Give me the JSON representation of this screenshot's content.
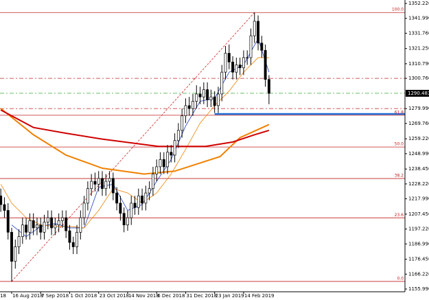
{
  "chart_data": {
    "type": "candlestick",
    "x": [
      -6,
      -4,
      -2,
      0,
      2,
      4,
      6,
      8,
      10,
      12,
      14,
      16,
      18,
      20,
      22,
      24,
      26,
      28,
      30,
      32,
      34,
      36,
      38,
      40,
      42,
      44,
      46,
      48,
      50,
      52,
      54,
      56,
      58,
      60,
      62,
      64,
      66,
      68,
      70,
      72,
      74,
      76,
      78,
      80,
      82,
      84,
      86,
      88,
      90,
      92,
      94,
      96,
      98,
      100,
      102,
      104,
      106,
      108,
      110,
      112,
      114,
      116,
      118,
      120,
      122,
      124,
      126,
      128,
      130,
      132,
      134,
      136,
      138,
      140,
      142
    ],
    "open": [
      1220,
      1214,
      1210,
      1195,
      1175,
      1185,
      1192,
      1200,
      1195,
      1203,
      1198,
      1200,
      1195,
      1202,
      1205,
      1198,
      1200,
      1203,
      1205,
      1196,
      1188,
      1185,
      1195,
      1205,
      1215,
      1225,
      1230,
      1228,
      1232,
      1225,
      1230,
      1232,
      1222,
      1215,
      1208,
      1200,
      1205,
      1215,
      1212,
      1220,
      1215,
      1222,
      1225,
      1235,
      1240,
      1245,
      1240,
      1250,
      1248,
      1258,
      1265,
      1275,
      1282,
      1280,
      1285,
      1290,
      1288,
      1293,
      1286,
      1288,
      1282,
      1290,
      1305,
      1318,
      1312,
      1305,
      1310,
      1308,
      1315,
      1315,
      1330,
      1340,
      1325,
      1320,
      1300
    ],
    "high": [
      1225,
      1219,
      1215,
      1198,
      1190,
      1197,
      1205,
      1205,
      1208,
      1208,
      1205,
      1205,
      1207,
      1210,
      1210,
      1205,
      1208,
      1210,
      1210,
      1200,
      1192,
      1200,
      1210,
      1220,
      1230,
      1235,
      1236,
      1237,
      1237,
      1235,
      1237,
      1236,
      1226,
      1220,
      1212,
      1210,
      1220,
      1220,
      1225,
      1225,
      1227,
      1230,
      1240,
      1245,
      1250,
      1250,
      1255,
      1255,
      1263,
      1270,
      1280,
      1287,
      1288,
      1290,
      1296,
      1295,
      1298,
      1298,
      1293,
      1292,
      1295,
      1310,
      1323,
      1324,
      1316,
      1315,
      1315,
      1320,
      1320,
      1335,
      1346,
      1344,
      1330,
      1324,
      1303
    ],
    "low": [
      1209,
      1205,
      1190,
      1161,
      1170,
      1180,
      1187,
      1190,
      1190,
      1193,
      1193,
      1190,
      1190,
      1197,
      1193,
      1193,
      1195,
      1198,
      1191,
      1183,
      1180,
      1180,
      1190,
      1200,
      1210,
      1220,
      1223,
      1223,
      1220,
      1220,
      1225,
      1217,
      1210,
      1203,
      1195,
      1196,
      1200,
      1207,
      1207,
      1210,
      1210,
      1217,
      1220,
      1230,
      1235,
      1235,
      1235,
      1243,
      1243,
      1253,
      1260,
      1270,
      1275,
      1275,
      1280,
      1283,
      1283,
      1281,
      1281,
      1277,
      1277,
      1285,
      1300,
      1307,
      1300,
      1300,
      1303,
      1303,
      1310,
      1310,
      1325,
      1320,
      1315,
      1295,
      1283
    ],
    "close": [
      1214,
      1210,
      1195,
      1175,
      1185,
      1192,
      1200,
      1195,
      1203,
      1198,
      1200,
      1195,
      1202,
      1205,
      1198,
      1200,
      1203,
      1205,
      1196,
      1188,
      1185,
      1195,
      1205,
      1215,
      1225,
      1230,
      1228,
      1232,
      1225,
      1230,
      1232,
      1222,
      1215,
      1208,
      1200,
      1205,
      1215,
      1212,
      1220,
      1215,
      1222,
      1225,
      1235,
      1240,
      1245,
      1240,
      1250,
      1248,
      1258,
      1265,
      1275,
      1282,
      1280,
      1285,
      1290,
      1288,
      1293,
      1286,
      1288,
      1282,
      1290,
      1305,
      1318,
      1312,
      1305,
      1310,
      1308,
      1315,
      1315,
      1330,
      1340,
      1325,
      1320,
      1300,
      1290.483
    ],
    "color": "#000000",
    "lines": [
      {
        "color": "#1f3fbf",
        "width": 0.8,
        "x": [
          0,
          8,
          16,
          24,
          32,
          40,
          48,
          56,
          64,
          72,
          80,
          88,
          96,
          104,
          112,
          120,
          128,
          136,
          142
        ],
        "values": [
          1200,
          1192,
          1199,
          1201,
          1198,
          1198,
          1226,
          1228,
          1210,
          1214,
          1230,
          1245,
          1268,
          1285,
          1287,
          1305,
          1310,
          1328,
          1305
        ]
      },
      {
        "color": "#f08000",
        "width": 0.8,
        "x": [
          -6,
          0,
          8,
          16,
          24,
          32,
          40,
          48,
          56,
          64,
          72,
          80,
          88,
          96,
          104,
          112,
          120,
          128,
          136,
          142
        ],
        "values": [
          1228,
          1215,
          1205,
          1200,
          1199,
          1199,
          1198,
          1210,
          1225,
          1222,
          1215,
          1222,
          1235,
          1252,
          1270,
          1282,
          1292,
          1305,
          1315,
          1315
        ]
      },
      {
        "color": "#f08000",
        "width": 2,
        "x": [
          -6,
          12,
          30,
          50,
          73,
          90,
          115,
          126,
          142
        ],
        "values": [
          1280,
          1262,
          1248,
          1239,
          1235,
          1237,
          1247,
          1260,
          1269
        ]
      },
      {
        "color": "#d00000",
        "width": 2,
        "x": [
          -6,
          12,
          30,
          50,
          81,
          107,
          122,
          134,
          142
        ],
        "values": [
          1279,
          1267,
          1263,
          1259,
          1254,
          1254,
          1257,
          1262,
          1265
        ]
      }
    ],
    "levels": [
      {
        "value": 1346.0,
        "label": "100.0"
      },
      {
        "value": 1275.4,
        "label": "61.8"
      },
      {
        "value": 1253.6,
        "label": "50.0"
      },
      {
        "value": 1231.9,
        "label": "38.2"
      },
      {
        "value": 1204.9,
        "label": "23.6"
      },
      {
        "value": 1161.2,
        "label": "0.0"
      }
    ],
    "levels_color": "#c02020",
    "horizontal_lines": [
      {
        "value": 1300.76,
        "color": "#c02020"
      },
      {
        "value": 1279.99,
        "color": "#c02020"
      },
      {
        "value": 1290.483,
        "color": "#33aa33"
      }
    ],
    "support_line": {
      "x": [
        112,
        217
      ],
      "values": [
        1276.3,
        1276.3
      ],
      "color": "#1e6fd9"
    },
    "trend_line": {
      "x": [
        0,
        134
      ],
      "values": [
        1161.2,
        1346.0
      ],
      "color": "#d02020"
    },
    "current_price": 1290.483,
    "xlim": [
      -6.44,
      217.05
    ],
    "xticks": [
      {
        "value": -16,
        "label": "18"
      },
      {
        "value": 0,
        "label": "16 Aug 2018"
      },
      {
        "value": 16,
        "label": "7 Sep 2018"
      },
      {
        "value": 32,
        "label": "1 Oct 2018"
      },
      {
        "value": 48,
        "label": "23 Oct 2018"
      },
      {
        "value": 64,
        "label": "14 Nov 2018"
      },
      {
        "value": 80,
        "label": "6 Dec 2018"
      },
      {
        "value": 96,
        "label": "31 Dec 2018"
      },
      {
        "value": 112,
        "label": "23 Jan 2019"
      },
      {
        "value": 128,
        "label": "14 Feb 2019"
      }
    ],
    "ylim": [
      1154.1,
      1354.6
    ],
    "yticks": [
      {
        "value": 1352.22,
        "label": "1352.220"
      },
      {
        "value": 1341.99,
        "label": "1341.990"
      },
      {
        "value": 1331.76,
        "label": "1331.760"
      },
      {
        "value": 1321.25,
        "label": "1321.250"
      },
      {
        "value": 1310.79,
        "label": "1310.790"
      },
      {
        "value": 1300.76,
        "label": "1300.760"
      },
      {
        "value": 1279.99,
        "label": "1279.990"
      },
      {
        "value": 1269.76,
        "label": "1269.760"
      },
      {
        "value": 1259.22,
        "label": "1259.220"
      },
      {
        "value": 1248.99,
        "label": "1248.990"
      },
      {
        "value": 1238.45,
        "label": "1238.450"
      },
      {
        "value": 1228.22,
        "label": "1228.220"
      },
      {
        "value": 1217.99,
        "label": "1217.990"
      },
      {
        "value": 1207.45,
        "label": "1207.450"
      },
      {
        "value": 1197.22,
        "label": "1197.220"
      },
      {
        "value": 1186.99,
        "label": "1186.990"
      },
      {
        "value": 1176.45,
        "label": "1176.450"
      },
      {
        "value": 1166.22,
        "label": "1166.220"
      },
      {
        "value": 1155.99,
        "label": "1155.990"
      }
    ]
  }
}
